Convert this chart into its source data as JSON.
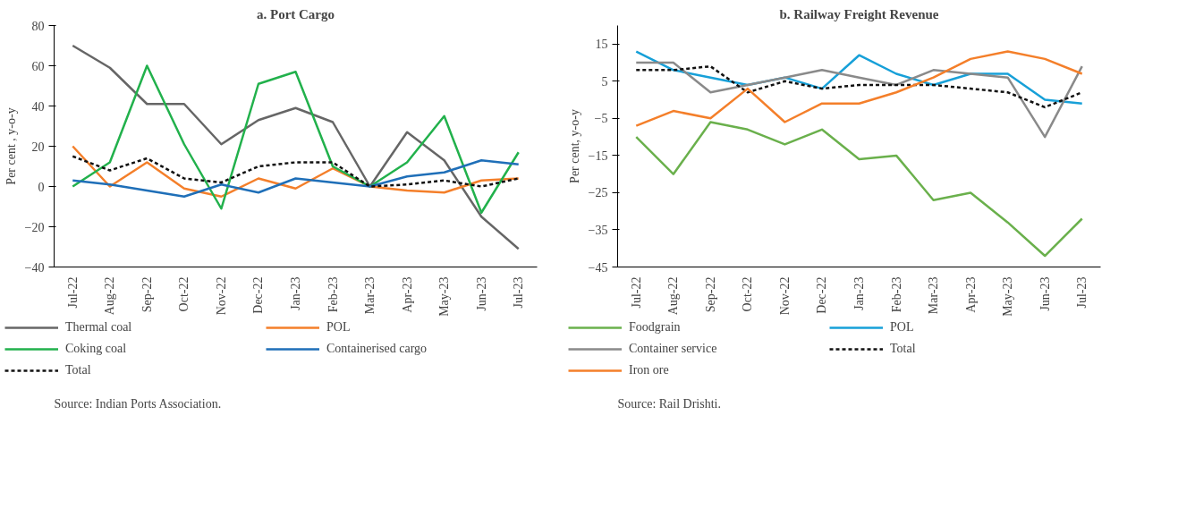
{
  "chart_data": [
    {
      "type": "line",
      "title": "a. Port Cargo",
      "ylabel": "Per cent , y-o-y",
      "categories": [
        "Jul-22",
        "Aug-22",
        "Sep-22",
        "Oct-22",
        "Nov-22",
        "Dec-22",
        "Jan-23",
        "Feb-23",
        "Mar-23",
        "Apr-23",
        "May-23",
        "Jun-23",
        "Jul-23"
      ],
      "series": [
        {
          "name": "Thermal coal",
          "color": "#666666",
          "values": [
            70,
            59,
            41,
            41,
            21,
            33,
            39,
            32,
            0,
            27,
            13,
            -15,
            -31
          ]
        },
        {
          "name": "POL",
          "color": "#f47f2a",
          "values": [
            20,
            0,
            12,
            -1,
            -5,
            4,
            -1,
            9,
            0,
            -2,
            -3,
            3,
            4
          ]
        },
        {
          "name": "Coking coal",
          "color": "#22b14c",
          "values": [
            0,
            12,
            60,
            21,
            -11,
            51,
            57,
            10,
            0,
            12,
            35,
            -13,
            17
          ]
        },
        {
          "name": "Containerised cargo",
          "color": "#1f6fb8",
          "values": [
            3,
            1,
            -2,
            -5,
            1,
            -3,
            4,
            2,
            0,
            5,
            7,
            13,
            11
          ]
        },
        {
          "name": "Total",
          "color": "#111111",
          "line_style": "dashed",
          "values": [
            15,
            8,
            14,
            4,
            2,
            10,
            12,
            12,
            0,
            1,
            3,
            0,
            4
          ]
        }
      ],
      "ylim": [
        -40,
        80
      ],
      "yticks": [
        -40,
        -20,
        0,
        20,
        40,
        60,
        80
      ],
      "grid": false,
      "legend": "bottom",
      "annotations": [
        "Source: Indian Ports Association."
      ]
    },
    {
      "type": "line",
      "title": "b. Railway Freight Revenue",
      "ylabel": "Per cent, y-o-y",
      "categories": [
        "Jul-22",
        "Aug-22",
        "Sep-22",
        "Oct-22",
        "Nov-22",
        "Dec-22",
        "Jan-23",
        "Feb-23",
        "Mar-23",
        "Apr-23",
        "May-23",
        "Jun-23",
        "Jul-23"
      ],
      "series": [
        {
          "name": "Foodgrain",
          "color": "#6ab04c",
          "values": [
            -10,
            -20,
            -6,
            -8,
            -12,
            -8,
            -16,
            -15,
            -27,
            -25,
            -33,
            -42,
            -32
          ]
        },
        {
          "name": "POL",
          "color": "#17a0d8",
          "values": [
            13,
            8,
            6,
            4,
            6,
            3,
            12,
            7,
            4,
            7,
            7,
            0,
            -1
          ]
        },
        {
          "name": "Container service",
          "color": "#8a8a8a",
          "values": [
            10,
            10,
            2,
            4,
            6,
            8,
            6,
            4,
            8,
            7,
            6,
            -10,
            9
          ]
        },
        {
          "name": "Total",
          "color": "#111111",
          "line_style": "dashed",
          "values": [
            8,
            8,
            9,
            2,
            5,
            3,
            4,
            4,
            4,
            3,
            2,
            -2,
            2
          ]
        },
        {
          "name": "Iron ore",
          "color": "#f47f2a",
          "values": [
            -7,
            -3,
            -5,
            3,
            -6,
            -1,
            -1,
            2,
            6,
            11,
            13,
            11,
            7
          ]
        }
      ],
      "ylim": [
        -45,
        20
      ],
      "yticks": [
        -45,
        -35,
        -25,
        -15,
        -5,
        5,
        15
      ],
      "grid": false,
      "legend": "bottom",
      "annotations": [
        "Source: Rail Drishti."
      ]
    }
  ]
}
